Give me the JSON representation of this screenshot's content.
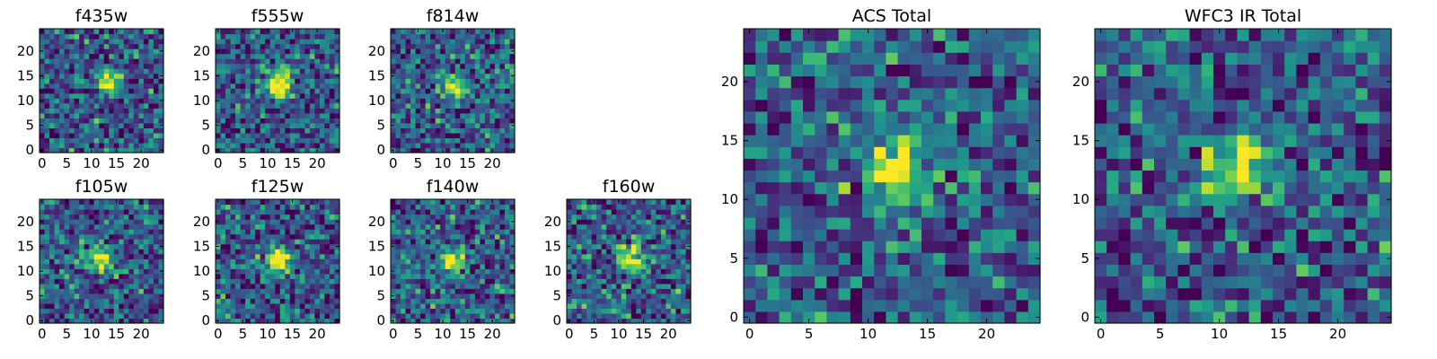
{
  "chart_data": [
    {
      "type": "heatmap",
      "title": "f435w",
      "x_range": [
        -0.5,
        24.5
      ],
      "y_range": [
        -0.5,
        24.5
      ],
      "xticks": [
        0,
        5,
        10,
        15,
        20
      ],
      "yticks": [
        0,
        5,
        10,
        15,
        20
      ],
      "grid_size": [
        25,
        25
      ],
      "source_peak": [
        13.5,
        13.5
      ],
      "colormap": "viridis"
    },
    {
      "type": "heatmap",
      "title": "f555w",
      "x_range": [
        -0.5,
        24.5
      ],
      "y_range": [
        -0.5,
        24.5
      ],
      "xticks": [
        0,
        5,
        10,
        15,
        20
      ],
      "yticks": [
        0,
        5,
        10,
        15,
        20
      ],
      "grid_size": [
        25,
        25
      ],
      "source_peak": [
        12.5,
        13.0
      ],
      "colormap": "viridis"
    },
    {
      "type": "heatmap",
      "title": "f814w",
      "x_range": [
        -0.5,
        24.5
      ],
      "y_range": [
        -0.5,
        24.5
      ],
      "xticks": [
        0,
        5,
        10,
        15,
        20
      ],
      "yticks": [
        0,
        5,
        10,
        15,
        20
      ],
      "grid_size": [
        25,
        25
      ],
      "source_peak": [
        12.5,
        13.0
      ],
      "colormap": "viridis"
    },
    {
      "type": "heatmap",
      "title": "f105w",
      "x_range": [
        -0.5,
        24.5
      ],
      "y_range": [
        -0.5,
        24.5
      ],
      "xticks": [
        0,
        5,
        10,
        15,
        20
      ],
      "yticks": [
        0,
        5,
        10,
        15,
        20
      ],
      "grid_size": [
        25,
        25
      ],
      "source_peak": [
        11.5,
        12.5
      ],
      "colormap": "viridis"
    },
    {
      "type": "heatmap",
      "title": "f125w",
      "x_range": [
        -0.5,
        24.5
      ],
      "y_range": [
        -0.5,
        24.5
      ],
      "xticks": [
        0,
        5,
        10,
        15,
        20
      ],
      "yticks": [
        0,
        5,
        10,
        15,
        20
      ],
      "grid_size": [
        25,
        25
      ],
      "source_peak": [
        12.0,
        12.5
      ],
      "colormap": "viridis"
    },
    {
      "type": "heatmap",
      "title": "f140w",
      "x_range": [
        -0.5,
        24.5
      ],
      "y_range": [
        -0.5,
        24.5
      ],
      "xticks": [
        0,
        5,
        10,
        15,
        20
      ],
      "yticks": [
        0,
        5,
        10,
        15,
        20
      ],
      "grid_size": [
        25,
        25
      ],
      "source_peak": [
        12.0,
        12.0
      ],
      "colormap": "viridis"
    },
    {
      "type": "heatmap",
      "title": "f160w",
      "x_range": [
        -0.5,
        24.5
      ],
      "y_range": [
        -0.5,
        24.5
      ],
      "xticks": [
        0,
        5,
        10,
        15,
        20
      ],
      "yticks": [
        0,
        5,
        10,
        15,
        20
      ],
      "grid_size": [
        25,
        25
      ],
      "source_peak": [
        12.5,
        12.5
      ],
      "colormap": "viridis"
    },
    {
      "type": "heatmap",
      "title": "ACS Total",
      "x_range": [
        -0.5,
        24.5
      ],
      "y_range": [
        -0.5,
        24.5
      ],
      "xticks": [
        0,
        5,
        10,
        15,
        20
      ],
      "yticks": [
        0,
        5,
        10,
        15,
        20
      ],
      "grid_size": [
        25,
        25
      ],
      "source_peak": [
        12.5,
        13.0
      ],
      "colormap": "viridis"
    },
    {
      "type": "heatmap",
      "title": "WFC3 IR Total",
      "x_range": [
        -0.5,
        24.5
      ],
      "y_range": [
        -0.5,
        24.5
      ],
      "xticks": [
        0,
        5,
        10,
        15,
        20
      ],
      "yticks": [
        0,
        5,
        10,
        15,
        20
      ],
      "grid_size": [
        25,
        25
      ],
      "source_peak": [
        12.0,
        12.5
      ],
      "colormap": "viridis"
    }
  ]
}
